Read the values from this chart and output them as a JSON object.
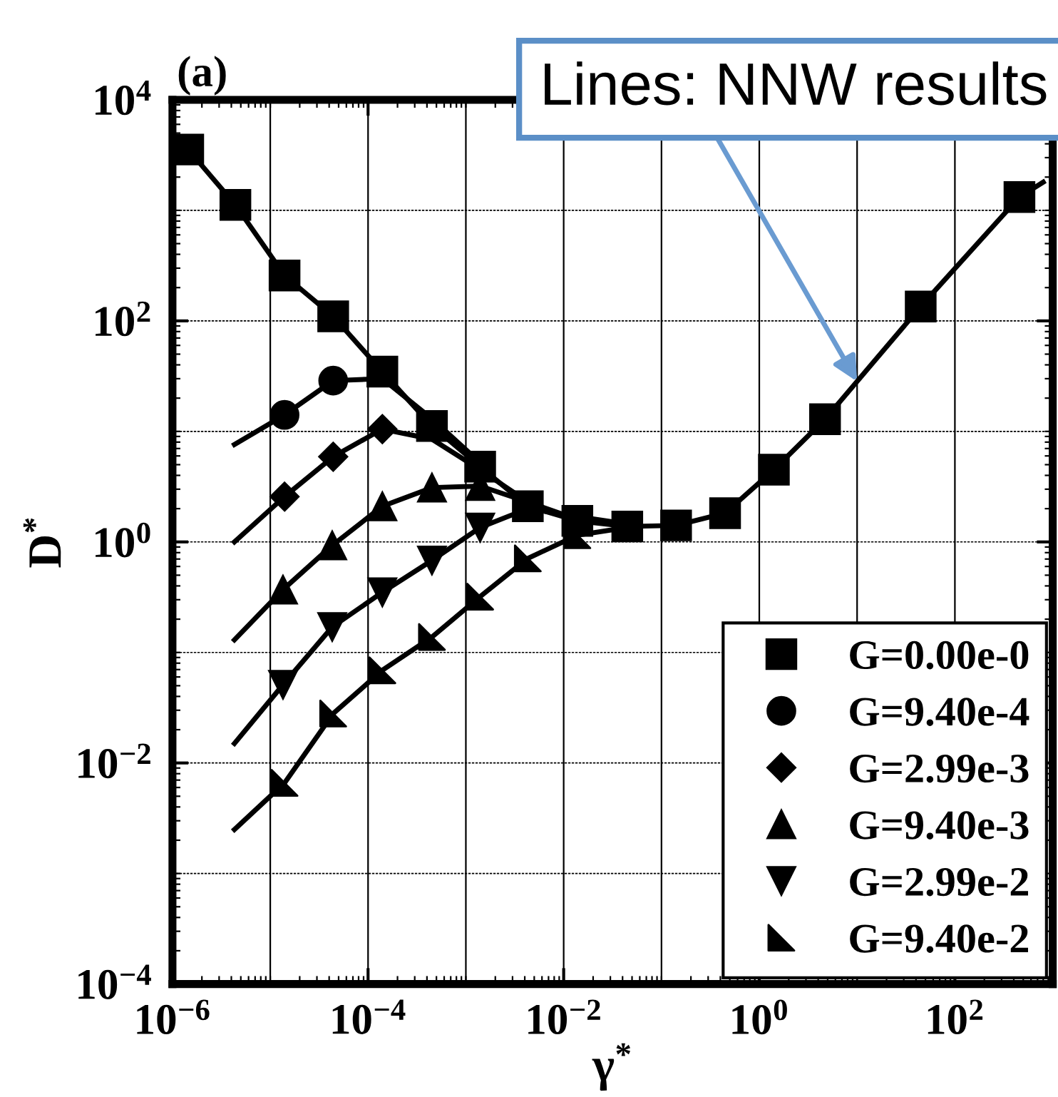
{
  "chart_data": {
    "type": "scatter",
    "title": "(a)",
    "xlabel": "γ$^{*}$",
    "ylabel": "D$^{*}$",
    "log": "xy",
    "grid": true,
    "legend": "bottom right",
    "xlim": [
      1e-06,
      1000
    ],
    "ylim": [
      0.0001,
      10000
    ],
    "xticks": [
      {
        "value": 1e-06,
        "label": "10$^{−6}$"
      },
      {
        "value": 0.0001,
        "label": "10$^{−4}$"
      },
      {
        "value": 0.01,
        "label": "10$^{−2}$"
      },
      {
        "value": 1,
        "label": "10$^{0}$"
      },
      {
        "value": 100,
        "label": "10$^{2}$"
      }
    ],
    "yticks": [
      {
        "value": 0.0001,
        "label": "10$^{−4}$"
      },
      {
        "value": 0.01,
        "label": "10$^{−2}$"
      },
      {
        "value": 1,
        "label": "10$^{0}$"
      },
      {
        "value": 100,
        "label": "10$^{2}$"
      },
      {
        "value": 10000,
        "label": "10$^{4}$"
      }
    ],
    "annotations": [
      {
        "text": "Lines: NNW results",
        "x": 10,
        "y": 28.3
      }
    ],
    "series": [
      {
        "name": "G=0.00e-0",
        "marker": "square",
        "color": "#000000",
        "x": [
          1.45e-06,
          4.4e-06,
          1.4e-05,
          4.4e-05,
          0.00014,
          0.00045,
          0.0014,
          0.0043,
          0.0138,
          0.0447,
          0.141,
          0.447,
          1.41,
          4.7,
          44.7,
          457
        ],
        "values": [
          3550,
          1120,
          257,
          110,
          34.7,
          11.2,
          4.8,
          2.1,
          1.55,
          1.38,
          1.41,
          1.82,
          4.5,
          12.9,
          135,
          1320
        ]
      },
      {
        "name": "G=9.40e-4",
        "marker": "circle",
        "color": "#000000",
        "x": [
          1.4e-05,
          4.4e-05
        ],
        "values": [
          14.1,
          28.8
        ]
      },
      {
        "name": "G=2.99e-3",
        "marker": "diamond",
        "color": "#000000",
        "x": [
          1.4e-05,
          4.4e-05,
          0.00014
        ],
        "values": [
          2.57,
          5.9,
          10.5
        ]
      },
      {
        "name": "G=9.40e-3",
        "marker": "triangle",
        "color": "#000000",
        "x": [
          1.35e-05,
          4.3e-05,
          0.00014,
          0.00045,
          0.0014
        ],
        "values": [
          0.37,
          0.93,
          2.1,
          3.1,
          3.2
        ]
      },
      {
        "name": "G=2.99e-2",
        "marker": "triangle_down",
        "color": "#000000",
        "x": [
          1.35e-05,
          4.3e-05,
          0.00014,
          0.00045,
          0.0014
        ],
        "values": [
          0.051,
          0.17,
          0.35,
          0.68,
          1.35
        ]
      },
      {
        "name": "G=9.40e-2",
        "marker": "triangle_corner",
        "color": "#000000",
        "x": [
          1.4e-05,
          4.4e-05,
          0.00014,
          0.00045,
          0.0014,
          0.0043,
          0.0138
        ],
        "values": [
          0.0066,
          0.028,
          0.069,
          0.138,
          0.32,
          0.71,
          1.15
        ]
      },
      {
        "type": "line",
        "color": "#000000",
        "x": [
          1.45e-06,
          4.4e-06,
          1.4e-05,
          4.4e-05,
          0.00014,
          0.00045,
          0.0014,
          0.0043,
          0.0138,
          0.0447,
          0.141,
          0.447,
          1.41,
          4.7,
          44.7,
          457,
          800
        ],
        "values": [
          3550,
          1120,
          257,
          110,
          34.7,
          11.2,
          4.8,
          2.1,
          1.55,
          1.38,
          1.41,
          1.82,
          4.5,
          12.9,
          135,
          1320,
          1800
        ]
      },
      {
        "type": "line",
        "color": "#000000",
        "x": [
          4.3e-06,
          1.4e-05,
          4.4e-05,
          0.00014,
          0.00045,
          0.0014
        ],
        "values": [
          7.6,
          14.1,
          28.8,
          30,
          13,
          5.2
        ]
      },
      {
        "type": "line",
        "color": "#000000",
        "x": [
          4.3e-06,
          1.4e-05,
          4.4e-05,
          0.00014,
          0.00045,
          0.0014,
          0.0043
        ],
        "values": [
          1.0,
          2.57,
          5.9,
          10.5,
          8.5,
          4.5,
          2.3
        ]
      },
      {
        "type": "line",
        "color": "#000000",
        "x": [
          4.3e-06,
          1.35e-05,
          4.3e-05,
          0.00014,
          0.00045,
          0.0014,
          0.0043,
          0.0138
        ],
        "values": [
          0.13,
          0.37,
          0.93,
          2.1,
          3.1,
          3.2,
          2.3,
          1.6
        ]
      },
      {
        "type": "line",
        "color": "#000000",
        "x": [
          4.3e-06,
          1.35e-05,
          4.3e-05,
          0.00014,
          0.00045,
          0.0014,
          0.0043,
          0.0138,
          0.0447
        ],
        "values": [
          0.015,
          0.051,
          0.17,
          0.35,
          0.68,
          1.35,
          2.0,
          1.7,
          1.45
        ]
      },
      {
        "type": "line",
        "color": "#000000",
        "x": [
          4.3e-06,
          1.4e-05,
          4.4e-05,
          0.00014,
          0.00045,
          0.0014,
          0.0043,
          0.0138,
          0.0447
        ],
        "values": [
          0.0025,
          0.0066,
          0.028,
          0.069,
          0.138,
          0.32,
          0.71,
          1.15,
          1.35
        ]
      }
    ]
  }
}
